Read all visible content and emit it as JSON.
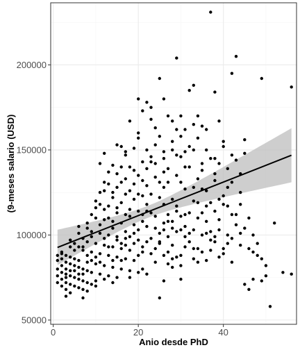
{
  "chart_data": {
    "type": "scatter",
    "title": "",
    "xlabel": "Anio desde PhD",
    "ylabel": "(9-meses salario (USD)",
    "xlim": [
      -0.6,
      57.2
    ],
    "ylim": [
      47500,
      236500
    ],
    "x_ticks": [
      0,
      20,
      40
    ],
    "y_ticks": [
      50000,
      100000,
      150000,
      200000
    ],
    "x_tick_labels": [
      "0",
      "20",
      "40"
    ],
    "y_tick_labels": [
      "50000",
      "100000",
      "150000",
      "200000"
    ],
    "grid": true,
    "legend": "none",
    "colors": {
      "points": "#000000",
      "fit_line": "#000000",
      "confidence_band": "#bdbdbd",
      "grid_major": "#ebebeb",
      "grid_minor": "#f5f5f5",
      "panel_border": "#333333"
    },
    "regression": {
      "intercept": 91700,
      "slope": 985,
      "x_range": [
        1,
        56
      ],
      "se_at_mean": 1800,
      "x_mean": 22.3
    },
    "points": [
      [
        56,
        187000
      ],
      [
        37,
        231000
      ],
      [
        43,
        205000
      ],
      [
        29,
        204000
      ],
      [
        42,
        195000
      ],
      [
        49,
        192000
      ],
      [
        25,
        192000
      ],
      [
        33,
        188000
      ],
      [
        32,
        185000
      ],
      [
        38,
        184000
      ],
      [
        20,
        180000
      ],
      [
        26,
        180000
      ],
      [
        22,
        178000
      ],
      [
        23,
        175000
      ],
      [
        21,
        173000
      ],
      [
        27,
        170000
      ],
      [
        30,
        170000
      ],
      [
        18,
        167000
      ],
      [
        28,
        167000
      ],
      [
        39,
        167000
      ],
      [
        35,
        164000
      ],
      [
        24,
        163000
      ],
      [
        31,
        162000
      ],
      [
        36,
        162000
      ],
      [
        20,
        160000
      ],
      [
        25,
        158000
      ],
      [
        34,
        157000
      ],
      [
        40,
        155000
      ],
      [
        45,
        156000
      ],
      [
        15,
        153000
      ],
      [
        16,
        152000
      ],
      [
        19,
        151000
      ],
      [
        22,
        150000
      ],
      [
        28,
        150000
      ],
      [
        31,
        149000
      ],
      [
        33,
        150000
      ],
      [
        12,
        148000
      ],
      [
        17,
        147000
      ],
      [
        23,
        146000
      ],
      [
        26,
        145000
      ],
      [
        30,
        146000
      ],
      [
        37,
        145000
      ],
      [
        42,
        147000
      ],
      [
        21,
        143000
      ],
      [
        11,
        142000
      ],
      [
        14,
        141000
      ],
      [
        18,
        140000
      ],
      [
        27,
        139000
      ],
      [
        32,
        140000
      ],
      [
        35,
        138000
      ],
      [
        39,
        142000
      ],
      [
        43,
        144000
      ],
      [
        13,
        137000
      ],
      [
        15,
        136000
      ],
      [
        20,
        135000
      ],
      [
        24,
        134000
      ],
      [
        29,
        135000
      ],
      [
        34,
        133000
      ],
      [
        38,
        132000
      ],
      [
        16,
        131000
      ],
      [
        19,
        130000
      ],
      [
        22,
        129000
      ],
      [
        26,
        128000
      ],
      [
        31,
        127000
      ],
      [
        36,
        126000
      ],
      [
        41,
        128000
      ],
      [
        12,
        126000
      ],
      [
        14,
        125000
      ],
      [
        17,
        124000
      ],
      [
        21,
        123000
      ],
      [
        25,
        122000
      ],
      [
        28,
        121000
      ],
      [
        33,
        120000
      ],
      [
        37,
        119000
      ],
      [
        44,
        118000
      ],
      [
        10,
        120000
      ],
      [
        11,
        118000
      ],
      [
        13,
        117000
      ],
      [
        15,
        116000
      ],
      [
        18,
        115000
      ],
      [
        20,
        114000
      ],
      [
        23,
        113000
      ],
      [
        27,
        112000
      ],
      [
        30,
        111000
      ],
      [
        34,
        110000
      ],
      [
        39,
        109000
      ],
      [
        42,
        112000
      ],
      [
        46,
        110000
      ],
      [
        9,
        112000
      ],
      [
        10,
        110000
      ],
      [
        12,
        109000
      ],
      [
        14,
        108000
      ],
      [
        16,
        107000
      ],
      [
        19,
        106000
      ],
      [
        22,
        105000
      ],
      [
        24,
        104000
      ],
      [
        26,
        103000
      ],
      [
        29,
        102000
      ],
      [
        32,
        101000
      ],
      [
        35,
        100000
      ],
      [
        38,
        99000
      ],
      [
        41,
        100000
      ],
      [
        44,
        101000
      ],
      [
        52,
        107000
      ],
      [
        6,
        105000
      ],
      [
        8,
        104000
      ],
      [
        9,
        102000
      ],
      [
        11,
        101000
      ],
      [
        13,
        100000
      ],
      [
        15,
        99000
      ],
      [
        17,
        98000
      ],
      [
        20,
        97000
      ],
      [
        22,
        96000
      ],
      [
        25,
        95000
      ],
      [
        28,
        94000
      ],
      [
        31,
        93000
      ],
      [
        34,
        92000
      ],
      [
        37,
        91000
      ],
      [
        40,
        92000
      ],
      [
        47,
        90000
      ],
      [
        7,
        98000
      ],
      [
        8,
        96000
      ],
      [
        10,
        95000
      ],
      [
        12,
        94000
      ],
      [
        14,
        93000
      ],
      [
        16,
        92000
      ],
      [
        18,
        91000
      ],
      [
        21,
        90000
      ],
      [
        23,
        89000
      ],
      [
        26,
        88000
      ],
      [
        29,
        87000
      ],
      [
        33,
        86000
      ],
      [
        36,
        85000
      ],
      [
        48,
        88000
      ],
      [
        4,
        97000
      ],
      [
        5,
        95000
      ],
      [
        6,
        93000
      ],
      [
        7,
        91000
      ],
      [
        9,
        90000
      ],
      [
        11,
        89000
      ],
      [
        13,
        88000
      ],
      [
        15,
        87000
      ],
      [
        17,
        86000
      ],
      [
        19,
        85000
      ],
      [
        24,
        84000
      ],
      [
        27,
        83000
      ],
      [
        30,
        82000
      ],
      [
        49,
        86000
      ],
      [
        2,
        89000
      ],
      [
        3,
        88000
      ],
      [
        4,
        87000
      ],
      [
        5,
        86000
      ],
      [
        6,
        85000
      ],
      [
        8,
        84000
      ],
      [
        10,
        83000
      ],
      [
        12,
        82000
      ],
      [
        14,
        81000
      ],
      [
        16,
        80000
      ],
      [
        18,
        79000
      ],
      [
        20,
        78000
      ],
      [
        22,
        77000
      ],
      [
        28,
        81000
      ],
      [
        1,
        88000
      ],
      [
        2,
        86000
      ],
      [
        3,
        84000
      ],
      [
        4,
        83000
      ],
      [
        5,
        82000
      ],
      [
        6,
        81000
      ],
      [
        7,
        80000
      ],
      [
        8,
        79000
      ],
      [
        9,
        78000
      ],
      [
        11,
        77000
      ],
      [
        13,
        76000
      ],
      [
        15,
        75000
      ],
      [
        21,
        80000
      ],
      [
        1,
        80000
      ],
      [
        2,
        78000
      ],
      [
        3,
        77000
      ],
      [
        4,
        76000
      ],
      [
        5,
        75000
      ],
      [
        6,
        74000
      ],
      [
        7,
        73000
      ],
      [
        8,
        72000
      ],
      [
        9,
        71000
      ],
      [
        10,
        70000
      ],
      [
        12,
        74000
      ],
      [
        14,
        72000
      ],
      [
        1,
        76000
      ],
      [
        2,
        74000
      ],
      [
        3,
        72000
      ],
      [
        4,
        71000
      ],
      [
        5,
        70000
      ],
      [
        6,
        69000
      ],
      [
        7,
        68000
      ],
      [
        8,
        67000
      ],
      [
        10,
        73000
      ],
      [
        1,
        72000
      ],
      [
        2,
        70000
      ],
      [
        3,
        68000
      ],
      [
        4,
        66000
      ],
      [
        3,
        64000
      ],
      [
        7,
        63000
      ],
      [
        25,
        63000
      ],
      [
        26,
        73000
      ],
      [
        30,
        74000
      ],
      [
        45,
        71000
      ],
      [
        46,
        68000
      ],
      [
        47,
        74000
      ],
      [
        49,
        73000
      ],
      [
        50,
        82000
      ],
      [
        51,
        58000
      ],
      [
        54,
        78000
      ],
      [
        56,
        77000
      ],
      [
        18,
        75000
      ],
      [
        16,
        85000
      ],
      [
        17,
        102000
      ],
      [
        19,
        121000
      ],
      [
        21,
        132000
      ],
      [
        23,
        143000
      ],
      [
        24,
        153000
      ],
      [
        26,
        118000
      ],
      [
        27,
        131000
      ],
      [
        29,
        147000
      ],
      [
        30,
        158000
      ],
      [
        32,
        113000
      ],
      [
        33,
        128000
      ],
      [
        35,
        142000
      ],
      [
        36,
        117000
      ],
      [
        38,
        136000
      ],
      [
        40,
        123000
      ],
      [
        41,
        139000
      ],
      [
        43,
        112000
      ],
      [
        44,
        125000
      ],
      [
        45,
        104000
      ],
      [
        45,
        148000
      ],
      [
        47,
        100000
      ],
      [
        48,
        95000
      ],
      [
        50,
        76000
      ],
      [
        19,
        95000
      ],
      [
        20,
        103000
      ],
      [
        21,
        112000
      ],
      [
        22,
        118000
      ],
      [
        23,
        124000
      ],
      [
        25,
        131000
      ],
      [
        26,
        137000
      ],
      [
        27,
        99000
      ],
      [
        28,
        108000
      ],
      [
        29,
        117000
      ],
      [
        31,
        105000
      ],
      [
        32,
        96000
      ],
      [
        33,
        92000
      ],
      [
        34,
        119000
      ],
      [
        36,
        108000
      ],
      [
        37,
        97000
      ],
      [
        38,
        114000
      ],
      [
        39,
        103000
      ],
      [
        40,
        89000
      ],
      [
        42,
        98000
      ],
      [
        43,
        106000
      ],
      [
        13,
        110000
      ],
      [
        14,
        104000
      ],
      [
        15,
        113000
      ],
      [
        16,
        119000
      ],
      [
        17,
        112000
      ],
      [
        18,
        126000
      ],
      [
        19,
        138000
      ],
      [
        11,
        106000
      ],
      [
        12,
        115000
      ],
      [
        13,
        130000
      ],
      [
        14,
        122000
      ],
      [
        15,
        128000
      ],
      [
        16,
        140000
      ],
      [
        17,
        133000
      ],
      [
        10,
        116000
      ],
      [
        11,
        125000
      ],
      [
        12,
        131000
      ],
      [
        9,
        99000
      ],
      [
        8,
        107000
      ],
      [
        7,
        93000
      ],
      [
        6,
        101000
      ],
      [
        5,
        91000
      ],
      [
        4,
        93000
      ],
      [
        3,
        80000
      ],
      [
        2,
        90000
      ],
      [
        24,
        92000
      ],
      [
        25,
        96000
      ],
      [
        27,
        90000
      ],
      [
        28,
        86000
      ],
      [
        30,
        88000
      ],
      [
        31,
        99000
      ],
      [
        34,
        84000
      ],
      [
        35,
        90000
      ],
      [
        37,
        102000
      ],
      [
        39,
        87000
      ],
      [
        41,
        95000
      ],
      [
        42,
        84000
      ],
      [
        44,
        94000
      ],
      [
        46,
        92000
      ],
      [
        20,
        124000
      ],
      [
        22,
        139000
      ],
      [
        24,
        142000
      ],
      [
        26,
        149000
      ],
      [
        28,
        155000
      ],
      [
        30,
        131000
      ],
      [
        32,
        152000
      ],
      [
        33,
        165000
      ],
      [
        35,
        127000
      ],
      [
        36,
        150000
      ],
      [
        38,
        145000
      ],
      [
        40,
        152000
      ],
      [
        41,
        117000
      ],
      [
        42,
        131000
      ],
      [
        44,
        136000
      ],
      [
        29,
        162000
      ],
      [
        31,
        140000
      ],
      [
        34,
        170000
      ],
      [
        23,
        168000
      ],
      [
        20,
        157000
      ],
      [
        17,
        149000
      ],
      [
        22,
        114000
      ],
      [
        24,
        111000
      ],
      [
        26,
        107000
      ],
      [
        28,
        104000
      ],
      [
        30,
        103000
      ],
      [
        31,
        112000
      ],
      [
        33,
        103000
      ],
      [
        35,
        113000
      ],
      [
        36,
        101000
      ],
      [
        38,
        96000
      ],
      [
        39,
        121000
      ],
      [
        40,
        118000
      ],
      [
        16,
        95000
      ],
      [
        18,
        99000
      ],
      [
        20,
        88000
      ],
      [
        21,
        93000
      ],
      [
        23,
        98000
      ],
      [
        25,
        101000
      ],
      [
        27,
        108000
      ],
      [
        29,
        114000
      ],
      [
        14,
        85000
      ],
      [
        15,
        97000
      ],
      [
        17,
        94000
      ],
      [
        18,
        111000
      ],
      [
        19,
        101000
      ],
      [
        21,
        108000
      ],
      [
        12,
        98000
      ],
      [
        13,
        93000
      ],
      [
        11,
        84000
      ],
      [
        10,
        87000
      ],
      [
        9,
        85000
      ],
      [
        8,
        88000
      ],
      [
        7,
        77000
      ],
      [
        6,
        77000
      ],
      [
        5,
        79000
      ],
      [
        4,
        79000
      ],
      [
        3,
        75000
      ],
      [
        2,
        82000
      ],
      [
        1,
        85000
      ]
    ]
  }
}
